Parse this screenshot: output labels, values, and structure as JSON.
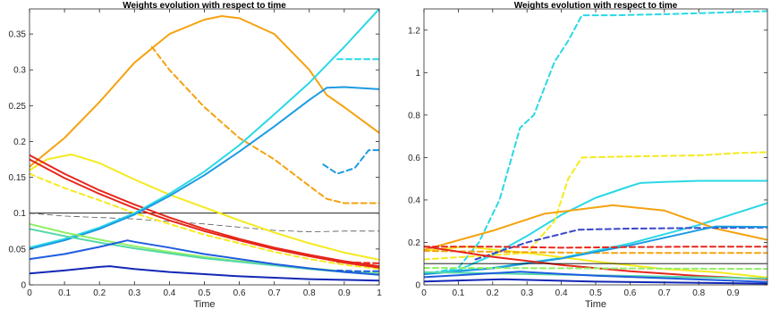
{
  "chart_data": [
    {
      "type": "line",
      "title": "Weights evolution with respect to time",
      "xlabel": "Time",
      "ylabel": "",
      "xlim": [
        0,
        1
      ],
      "ylim": [
        0,
        0.385
      ],
      "grid": false,
      "xticks": [
        0,
        0.1,
        0.2,
        0.3,
        0.4,
        0.5,
        0.6,
        0.7,
        0.8,
        0.9,
        1
      ],
      "xtick_labels": [
        "0",
        "0.1",
        "0.2",
        "0.3",
        "0.4",
        "0.5",
        "0.6",
        "0.7",
        "0.8",
        "0.9",
        "1"
      ],
      "yticks": [
        0,
        0.05,
        0.1,
        0.15,
        0.2,
        0.25,
        0.3,
        0.35
      ],
      "ytick_labels": [
        "0",
        "0.05",
        "0.1",
        "0.15",
        "0.2",
        "0.25",
        "0.3",
        "0.35"
      ],
      "series": [
        {
          "color": "#000000",
          "style": "solid",
          "x": [
            0,
            1
          ],
          "y": [
            0.1,
            0.1
          ]
        },
        {
          "color": "#555555",
          "style": "dashed",
          "x": [
            0,
            0.1,
            0.3,
            0.5,
            0.7,
            0.8,
            0.9,
            1
          ],
          "y": [
            0.1,
            0.096,
            0.092,
            0.085,
            0.076,
            0.074,
            0.075,
            0.075
          ]
        },
        {
          "color": "#f5a20f",
          "style": "solid",
          "x": [
            0,
            0.1,
            0.2,
            0.3,
            0.4,
            0.5,
            0.55,
            0.6,
            0.7,
            0.8,
            0.85,
            0.9,
            1
          ],
          "y": [
            0.165,
            0.205,
            0.255,
            0.31,
            0.35,
            0.37,
            0.375,
            0.372,
            0.35,
            0.3,
            0.265,
            0.248,
            0.212
          ]
        },
        {
          "color": "#f5a20f",
          "style": "dashed",
          "x": [
            0.35,
            0.4,
            0.5,
            0.6,
            0.7,
            0.8,
            0.85,
            0.9,
            1
          ],
          "y": [
            0.332,
            0.3,
            0.248,
            0.205,
            0.175,
            0.138,
            0.12,
            0.114,
            0.114
          ]
        },
        {
          "color": "#f5ea1f",
          "style": "solid",
          "x": [
            0,
            0.05,
            0.12,
            0.2,
            0.3,
            0.4,
            0.5,
            0.6,
            0.7,
            0.8,
            0.9,
            1
          ],
          "y": [
            0.16,
            0.175,
            0.182,
            0.17,
            0.147,
            0.126,
            0.108,
            0.09,
            0.073,
            0.058,
            0.045,
            0.035
          ]
        },
        {
          "color": "#f5ea1f",
          "style": "dashed",
          "x": [
            0,
            0.1,
            0.2,
            0.3,
            0.4,
            0.5,
            0.6,
            0.7,
            0.8,
            0.9,
            1
          ],
          "y": [
            0.155,
            0.135,
            0.118,
            0.1,
            0.085,
            0.07,
            0.058,
            0.046,
            0.036,
            0.028,
            0.022
          ]
        },
        {
          "color": "#e6261b",
          "style": "solid",
          "x": [
            0,
            0.1,
            0.2,
            0.3,
            0.4,
            0.5,
            0.6,
            0.7,
            0.8,
            0.9,
            1
          ],
          "y": [
            0.181,
            0.155,
            0.132,
            0.112,
            0.094,
            0.078,
            0.064,
            0.052,
            0.042,
            0.033,
            0.026
          ]
        },
        {
          "color": "#e6261b",
          "style": "solid",
          "x": [
            0,
            0.1,
            0.2,
            0.3,
            0.4,
            0.5,
            0.6,
            0.7,
            0.8,
            0.9,
            1
          ],
          "y": [
            0.175,
            0.149,
            0.127,
            0.107,
            0.09,
            0.075,
            0.062,
            0.05,
            0.04,
            0.031,
            0.024
          ]
        },
        {
          "color": "#e6261b",
          "style": "dashed",
          "x": [
            0.88,
            0.94,
            1
          ],
          "y": [
            0.032,
            0.031,
            0.03
          ]
        },
        {
          "color": "#2ad8e6",
          "style": "solid",
          "x": [
            0,
            0.1,
            0.2,
            0.3,
            0.4,
            0.5,
            0.6,
            0.7,
            0.8,
            0.9,
            1
          ],
          "y": [
            0.052,
            0.064,
            0.08,
            0.1,
            0.127,
            0.158,
            0.195,
            0.238,
            0.282,
            0.332,
            0.385
          ]
        },
        {
          "color": "#2ad8e6",
          "style": "dashed",
          "x": [
            0.88,
            0.94,
            1
          ],
          "y": [
            0.315,
            0.315,
            0.315
          ]
        },
        {
          "color": "#1d9be3",
          "style": "solid",
          "x": [
            0,
            0.1,
            0.2,
            0.3,
            0.4,
            0.5,
            0.6,
            0.7,
            0.8,
            0.85,
            0.9,
            1
          ],
          "y": [
            0.05,
            0.062,
            0.078,
            0.098,
            0.124,
            0.153,
            0.186,
            0.221,
            0.258,
            0.275,
            0.276,
            0.273
          ]
        },
        {
          "color": "#1d9be3",
          "style": "dashed",
          "x": [
            0.84,
            0.88,
            0.93,
            0.97,
            1
          ],
          "y": [
            0.168,
            0.155,
            0.163,
            0.188,
            0.188
          ]
        },
        {
          "color": "#8ff063",
          "style": "solid",
          "x": [
            0,
            0.1,
            0.2,
            0.3,
            0.4,
            0.5,
            0.6,
            0.7,
            0.8,
            0.9,
            1
          ],
          "y": [
            0.085,
            0.073,
            0.063,
            0.054,
            0.046,
            0.039,
            0.033,
            0.028,
            0.023,
            0.019,
            0.016
          ]
        },
        {
          "color": "#55d9a8",
          "style": "solid",
          "x": [
            0,
            0.1,
            0.2,
            0.3,
            0.4,
            0.5,
            0.6,
            0.7,
            0.8,
            0.9,
            1
          ],
          "y": [
            0.078,
            0.068,
            0.059,
            0.051,
            0.044,
            0.037,
            0.032,
            0.027,
            0.022,
            0.018,
            0.015
          ]
        },
        {
          "color": "#1f5ce0",
          "style": "solid",
          "x": [
            0,
            0.1,
            0.2,
            0.28,
            0.3,
            0.4,
            0.5,
            0.6,
            0.7,
            0.8,
            0.9,
            1
          ],
          "y": [
            0.036,
            0.043,
            0.053,
            0.062,
            0.06,
            0.052,
            0.043,
            0.036,
            0.029,
            0.023,
            0.018,
            0.014
          ]
        },
        {
          "color": "#1f5ce0",
          "style": "dashed",
          "x": [
            0.88,
            0.94,
            1
          ],
          "y": [
            0.02,
            0.019,
            0.019
          ]
        },
        {
          "color": "#1327b5",
          "style": "solid",
          "x": [
            0,
            0.1,
            0.2,
            0.23,
            0.3,
            0.4,
            0.5,
            0.6,
            0.7,
            0.8,
            0.9,
            1
          ],
          "y": [
            0.016,
            0.02,
            0.025,
            0.026,
            0.022,
            0.018,
            0.015,
            0.012,
            0.01,
            0.008,
            0.007,
            0.006
          ]
        }
      ]
    },
    {
      "type": "line",
      "title": "Weights evolution with respect to time",
      "xlabel": "Time",
      "ylabel": "",
      "xlim": [
        0,
        1
      ],
      "ylim": [
        0,
        1.3
      ],
      "grid": false,
      "xticks": [
        0,
        0.1,
        0.2,
        0.3,
        0.4,
        0.5,
        0.6,
        0.7,
        0.8,
        0.9
      ],
      "xtick_labels": [
        "0",
        "0.1",
        "0.2",
        "0.3",
        "0.4",
        "0.5",
        "0.6",
        "0.7",
        "0.8",
        "0.9"
      ],
      "yticks": [
        0,
        0.2,
        0.4,
        0.6,
        0.8,
        1,
        1.2
      ],
      "ytick_labels": [
        "0",
        "0.2",
        "0.4",
        "0.6",
        "0.8",
        "1",
        "1.2"
      ],
      "series": [
        {
          "color": "#2ad8e6",
          "style": "dashed",
          "x": [
            0,
            0.1,
            0.16,
            0.22,
            0.28,
            0.32,
            0.38,
            0.42,
            0.46,
            0.55,
            0.7,
            0.8,
            0.9,
            1
          ],
          "y": [
            0.05,
            0.08,
            0.2,
            0.4,
            0.74,
            0.8,
            1.05,
            1.15,
            1.27,
            1.27,
            1.275,
            1.28,
            1.285,
            1.29
          ]
        },
        {
          "color": "#2ad8e6",
          "style": "solid",
          "x": [
            0,
            0.1,
            0.2,
            0.3,
            0.4,
            0.5,
            0.6,
            0.63,
            0.7,
            0.8,
            0.9,
            1
          ],
          "y": [
            0.05,
            0.07,
            0.14,
            0.23,
            0.33,
            0.41,
            0.465,
            0.48,
            0.485,
            0.49,
            0.49,
            0.49
          ]
        },
        {
          "color": "#2ad8e6",
          "style": "solid",
          "x": [
            0,
            0.2,
            0.4,
            0.6,
            0.8,
            1
          ],
          "y": [
            0.052,
            0.08,
            0.127,
            0.195,
            0.282,
            0.385
          ]
        },
        {
          "color": "#f5ea1f",
          "style": "dashed",
          "x": [
            0,
            0.3,
            0.38,
            0.42,
            0.46,
            0.6,
            0.8,
            0.9,
            1
          ],
          "y": [
            0.12,
            0.15,
            0.3,
            0.5,
            0.6,
            0.605,
            0.61,
            0.62,
            0.625
          ]
        },
        {
          "color": "#f5ea1f",
          "style": "solid",
          "x": [
            0,
            0.12,
            0.3,
            0.5,
            0.7,
            0.85,
            1
          ],
          "y": [
            0.16,
            0.18,
            0.15,
            0.11,
            0.075,
            0.06,
            0.035
          ]
        },
        {
          "color": "#f5a20f",
          "style": "solid",
          "x": [
            0,
            0.2,
            0.35,
            0.55,
            0.7,
            0.85,
            1
          ],
          "y": [
            0.165,
            0.255,
            0.335,
            0.375,
            0.35,
            0.265,
            0.212
          ]
        },
        {
          "color": "#f5a20f",
          "style": "dashed",
          "x": [
            0,
            0.5,
            1
          ],
          "y": [
            0.16,
            0.15,
            0.15
          ]
        },
        {
          "color": "#3a47c9",
          "style": "dashed",
          "x": [
            0.15,
            0.3,
            0.45,
            0.6,
            0.8,
            1
          ],
          "y": [
            0.12,
            0.2,
            0.26,
            0.265,
            0.268,
            0.27
          ]
        },
        {
          "color": "#1d9be3",
          "style": "solid",
          "x": [
            0,
            0.2,
            0.4,
            0.6,
            0.8,
            0.85,
            1
          ],
          "y": [
            0.05,
            0.078,
            0.124,
            0.186,
            0.258,
            0.275,
            0.273
          ]
        },
        {
          "color": "#e6261b",
          "style": "dashed",
          "x": [
            0,
            0.2,
            0.4,
            0.6,
            0.8,
            1
          ],
          "y": [
            0.18,
            0.18,
            0.175,
            0.178,
            0.18,
            0.18
          ]
        },
        {
          "color": "#e6261b",
          "style": "solid",
          "x": [
            0,
            0.2,
            0.4,
            0.6,
            0.8,
            1
          ],
          "y": [
            0.181,
            0.132,
            0.094,
            0.064,
            0.042,
            0.026
          ]
        },
        {
          "color": "#000000",
          "style": "solid",
          "x": [
            0,
            1
          ],
          "y": [
            0.1,
            0.1
          ]
        },
        {
          "color": "#8ff063",
          "style": "dashed",
          "x": [
            0,
            0.5,
            1
          ],
          "y": [
            0.08,
            0.078,
            0.075
          ]
        },
        {
          "color": "#55d9a8",
          "style": "solid",
          "x": [
            0,
            0.5,
            1
          ],
          "y": [
            0.06,
            0.045,
            0.03
          ]
        },
        {
          "color": "#1f5ce0",
          "style": "solid",
          "x": [
            0,
            0.28,
            0.5,
            1
          ],
          "y": [
            0.036,
            0.062,
            0.043,
            0.014
          ]
        },
        {
          "color": "#1327b5",
          "style": "solid",
          "x": [
            0,
            0.23,
            0.5,
            1
          ],
          "y": [
            0.016,
            0.026,
            0.015,
            0.006
          ]
        }
      ]
    }
  ]
}
